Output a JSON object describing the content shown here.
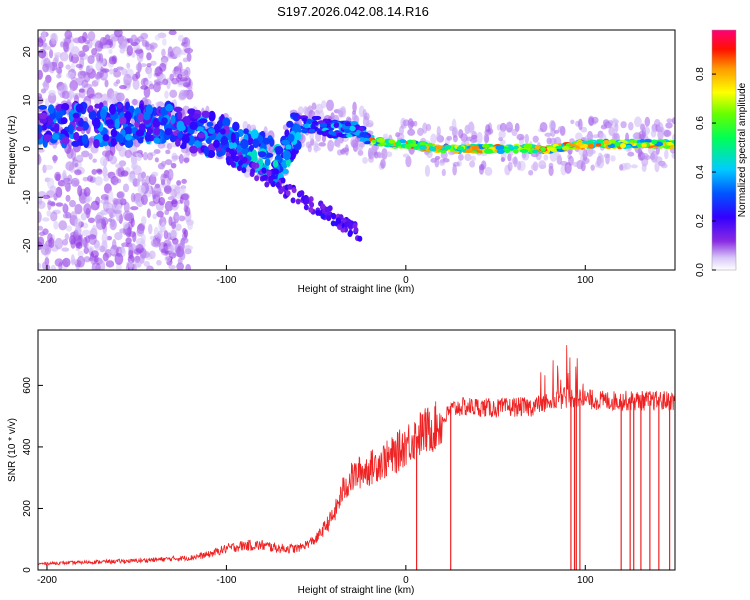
{
  "title": "S197.2026.042.08.14.R16",
  "chart_data": [
    {
      "type": "heatmap",
      "panel": "spectrogram",
      "xlabel": "Height of straight line (km)",
      "ylabel": "Frequency (Hz)",
      "xlim": [
        -205,
        150
      ],
      "ylim": [
        -25,
        24.5
      ],
      "xticks": [
        -200,
        -100,
        0,
        100
      ],
      "yticks": [
        -20,
        -10,
        0,
        10,
        20
      ],
      "colorbar": {
        "label": "Normalized spectral amplitude",
        "range": [
          0,
          0.98
        ],
        "ticks": [
          0.0,
          0.2,
          0.4,
          0.6,
          0.8
        ],
        "tick_labels": [
          "0.0",
          "0.2",
          "0.4",
          "0.6",
          "0.8"
        ]
      },
      "ridge": [
        {
          "x": -200,
          "f": 5
        },
        {
          "x": -180,
          "f": 5
        },
        {
          "x": -160,
          "f": 5
        },
        {
          "x": -140,
          "f": 5
        },
        {
          "x": -130,
          "f": 5
        },
        {
          "x": -120,
          "f": 4
        },
        {
          "x": -110,
          "f": 3
        },
        {
          "x": -100,
          "f": 2
        },
        {
          "x": -90,
          "f": 0
        },
        {
          "x": -80,
          "f": -1
        },
        {
          "x": -70,
          "f": -3
        },
        {
          "x": -60,
          "f": 5
        },
        {
          "x": -50,
          "f": 5
        },
        {
          "x": -40,
          "f": 4
        },
        {
          "x": -30,
          "f": 4
        },
        {
          "x": -20,
          "f": 2
        },
        {
          "x": -10,
          "f": 1
        },
        {
          "x": 0,
          "f": 1
        },
        {
          "x": 20,
          "f": 0
        },
        {
          "x": 50,
          "f": 0
        },
        {
          "x": 80,
          "f": 0
        },
        {
          "x": 100,
          "f": 1
        },
        {
          "x": 150,
          "f": 1
        }
      ]
    },
    {
      "type": "line",
      "panel": "snr",
      "xlabel": "Height of straight line (km)",
      "ylabel": "SNR (10 * v/v)",
      "xlim": [
        -205,
        150
      ],
      "ylim": [
        0,
        780
      ],
      "xticks": [
        -200,
        -100,
        0,
        100
      ],
      "yticks": [
        0,
        200,
        400,
        600
      ],
      "color": "#ee2222",
      "series": [
        {
          "name": "SNR",
          "points": [
            [
              -205,
              20
            ],
            [
              -180,
              25
            ],
            [
              -150,
              30
            ],
            [
              -120,
              40
            ],
            [
              -110,
              50
            ],
            [
              -100,
              70
            ],
            [
              -90,
              80
            ],
            [
              -80,
              80
            ],
            [
              -70,
              70
            ],
            [
              -60,
              70
            ],
            [
              -50,
              100
            ],
            [
              -40,
              180
            ],
            [
              -35,
              260
            ],
            [
              -30,
              300
            ],
            [
              -25,
              320
            ],
            [
              -20,
              330
            ],
            [
              -15,
              350
            ],
            [
              -10,
              360
            ],
            [
              -5,
              380
            ],
            [
              0,
              410
            ],
            [
              5,
              430
            ],
            [
              10,
              450
            ],
            [
              15,
              460
            ],
            [
              20,
              480
            ],
            [
              25,
              520
            ],
            [
              30,
              530
            ],
            [
              40,
              530
            ],
            [
              50,
              525
            ],
            [
              60,
              530
            ],
            [
              70,
              530
            ],
            [
              80,
              550
            ],
            [
              90,
              560
            ],
            [
              95,
              560
            ],
            [
              100,
              555
            ],
            [
              110,
              550
            ],
            [
              120,
              550
            ],
            [
              130,
              550
            ],
            [
              140,
              550
            ],
            [
              150,
              550
            ]
          ]
        }
      ],
      "dropouts": [
        6,
        25,
        92,
        94,
        95,
        97,
        120,
        125,
        127,
        131,
        136,
        141,
        147
      ]
    }
  ]
}
